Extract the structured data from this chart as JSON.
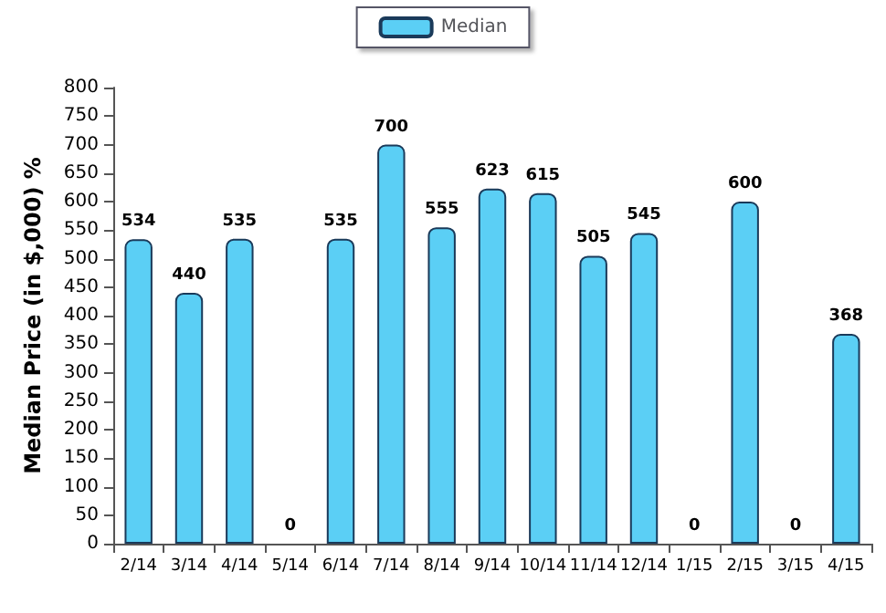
{
  "chart_data": {
    "type": "bar",
    "ylabel": "Median Price (in $,000) %",
    "categories": [
      "2/14",
      "3/14",
      "4/14",
      "5/14",
      "6/14",
      "7/14",
      "8/14",
      "9/14",
      "10/14",
      "11/14",
      "12/14",
      "1/15",
      "2/15",
      "3/15",
      "4/15"
    ],
    "series": [
      {
        "name": "Median",
        "color": "#5bcff5",
        "values": [
          534,
          440,
          535,
          0,
          535,
          700,
          555,
          623,
          615,
          505,
          545,
          0,
          600,
          0,
          368
        ]
      }
    ],
    "ylim": [
      0,
      800
    ],
    "yticks": [
      0,
      50,
      100,
      150,
      200,
      250,
      300,
      350,
      400,
      450,
      500,
      550,
      600,
      650,
      700,
      750,
      800
    ],
    "data_labels": true,
    "legend": "top",
    "grid": false
  }
}
